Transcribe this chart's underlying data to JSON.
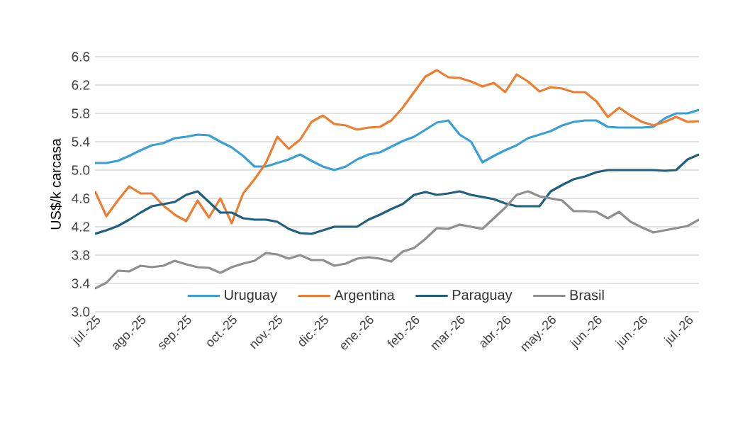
{
  "chart_data": {
    "type": "line",
    "ylabel": "US$/k carcasa",
    "categories": [
      "jul.-25",
      null,
      null,
      null,
      "ago.-25",
      null,
      null,
      null,
      "sep.-25",
      null,
      null,
      null,
      "oct.-25",
      null,
      null,
      null,
      "nov.-25",
      null,
      null,
      null,
      "dic.-25",
      null,
      null,
      null,
      "ene.-26",
      null,
      null,
      null,
      "feb.-26",
      null,
      null,
      null,
      "mar.-26",
      null,
      null,
      null,
      "abr.-26",
      null,
      null,
      null,
      "may.-26",
      null,
      null,
      null,
      "jun.-26",
      null,
      null,
      null,
      "jun.-26",
      null,
      null,
      null,
      "jul.-26",
      null
    ],
    "series": [
      {
        "name": "Uruguay",
        "color": "#3a9fd5",
        "values": [
          5.1,
          5.1,
          5.13,
          5.2,
          5.28,
          5.35,
          5.38,
          5.45,
          5.47,
          5.5,
          5.49,
          5.4,
          5.32,
          5.2,
          5.05,
          5.05,
          5.1,
          5.15,
          5.22,
          5.13,
          5.05,
          5.0,
          5.05,
          5.15,
          5.22,
          5.25,
          5.33,
          5.41,
          5.47,
          5.57,
          5.67,
          5.7,
          5.5,
          5.4,
          5.11,
          5.2,
          5.28,
          5.35,
          5.45,
          5.5,
          5.55,
          5.63,
          5.68,
          5.7,
          5.7,
          5.61,
          5.6,
          5.6,
          5.6,
          5.61,
          5.73,
          5.8,
          5.8,
          5.85
        ]
      },
      {
        "name": "Argentina",
        "color": "#ed7d31",
        "values": [
          4.7,
          4.35,
          4.57,
          4.77,
          4.67,
          4.67,
          4.5,
          4.37,
          4.28,
          4.57,
          4.33,
          4.6,
          4.25,
          4.67,
          4.87,
          5.1,
          5.47,
          5.3,
          5.43,
          5.68,
          5.77,
          5.65,
          5.63,
          5.57,
          5.6,
          5.61,
          5.7,
          5.88,
          6.1,
          6.32,
          6.41,
          6.31,
          6.3,
          6.25,
          6.18,
          6.23,
          6.1,
          6.35,
          6.25,
          6.11,
          6.17,
          6.15,
          6.1,
          6.1,
          5.97,
          5.75,
          5.88,
          5.77,
          5.68,
          5.63,
          5.68,
          5.75,
          5.68,
          5.69
        ]
      },
      {
        "name": "Paraguay",
        "color": "#1f5f80",
        "values": [
          4.1,
          4.15,
          4.21,
          4.3,
          4.4,
          4.49,
          4.52,
          4.55,
          4.65,
          4.7,
          4.55,
          4.4,
          4.4,
          4.32,
          4.3,
          4.3,
          4.27,
          4.17,
          4.11,
          4.1,
          4.15,
          4.2,
          4.2,
          4.2,
          4.3,
          4.37,
          4.45,
          4.52,
          4.65,
          4.69,
          4.65,
          4.67,
          4.7,
          4.65,
          4.62,
          4.59,
          4.53,
          4.49,
          4.49,
          4.49,
          4.7,
          4.79,
          4.87,
          4.91,
          4.97,
          5.0,
          5.0,
          5.0,
          5.0,
          5.0,
          4.99,
          5.0,
          5.15,
          5.22
        ]
      },
      {
        "name": "Brasil",
        "color": "#8f8f8f",
        "values": [
          3.33,
          3.41,
          3.58,
          3.57,
          3.65,
          3.63,
          3.65,
          3.72,
          3.67,
          3.63,
          3.62,
          3.55,
          3.63,
          3.68,
          3.72,
          3.83,
          3.81,
          3.75,
          3.8,
          3.73,
          3.73,
          3.65,
          3.68,
          3.75,
          3.77,
          3.75,
          3.71,
          3.85,
          3.9,
          4.03,
          4.18,
          4.17,
          4.23,
          4.2,
          4.17,
          4.32,
          4.47,
          4.65,
          4.7,
          4.63,
          4.6,
          4.57,
          4.42,
          4.42,
          4.41,
          4.32,
          4.41,
          4.27,
          4.19,
          4.12,
          4.15,
          4.18,
          4.21,
          4.3
        ]
      }
    ],
    "ylim": [
      3.0,
      6.6
    ],
    "yticks": [
      {
        "value": 3,
        "label": "3.0"
      },
      3.4,
      3.8,
      4.2,
      4.6,
      {
        "value": 5,
        "label": "5.0"
      },
      5.4,
      5.8,
      6.2,
      6.6
    ],
    "grid": "y",
    "legend": "bottom",
    "marker": "none",
    "line_style": "solid"
  }
}
